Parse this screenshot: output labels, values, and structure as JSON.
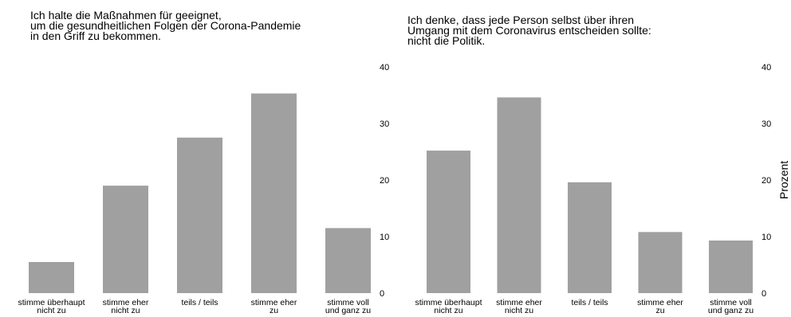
{
  "chart_data": [
    {
      "type": "bar",
      "title_lines": [
        "Ich halte die Maßnahmen für geeignet,",
        "um die gesundheitlichen Folgen der Corona-Pandemie",
        "in den Griff zu bekommen."
      ],
      "categories": [
        [
          "stimme überhaupt",
          "nicht zu"
        ],
        [
          "stimme eher",
          "nicht zu"
        ],
        [
          "teils / teils"
        ],
        [
          "stimme eher",
          "zu"
        ],
        [
          "stimme voll",
          "und ganz zu"
        ]
      ],
      "values": [
        5.5,
        19,
        27.5,
        35.3,
        11.5
      ],
      "ylim": [
        0,
        40
      ],
      "yticks": [
        "0",
        "10",
        "20",
        "30",
        "40"
      ],
      "bar_color": "#a0a0a0",
      "grid": false
    },
    {
      "type": "bar",
      "title_lines": [
        "Ich denke, dass jede Person selbst über ihren",
        "Umgang mit dem Coronavirus entscheiden sollte:",
        "nicht die Politik."
      ],
      "categories": [
        [
          "stimme überhaupt",
          "nicht zu"
        ],
        [
          "stimme eher",
          "nicht zu"
        ],
        [
          "teils / teils"
        ],
        [
          "stimme eher",
          "zu"
        ],
        [
          "stimme voll",
          "und ganz zu"
        ]
      ],
      "values": [
        25.2,
        34.6,
        19.6,
        10.8,
        9.3
      ],
      "ylim": [
        0,
        40
      ],
      "yticks": [
        "0",
        "10",
        "20",
        "30",
        "40"
      ],
      "ylabel": "Prozent",
      "bar_color": "#a0a0a0",
      "grid": false
    }
  ]
}
